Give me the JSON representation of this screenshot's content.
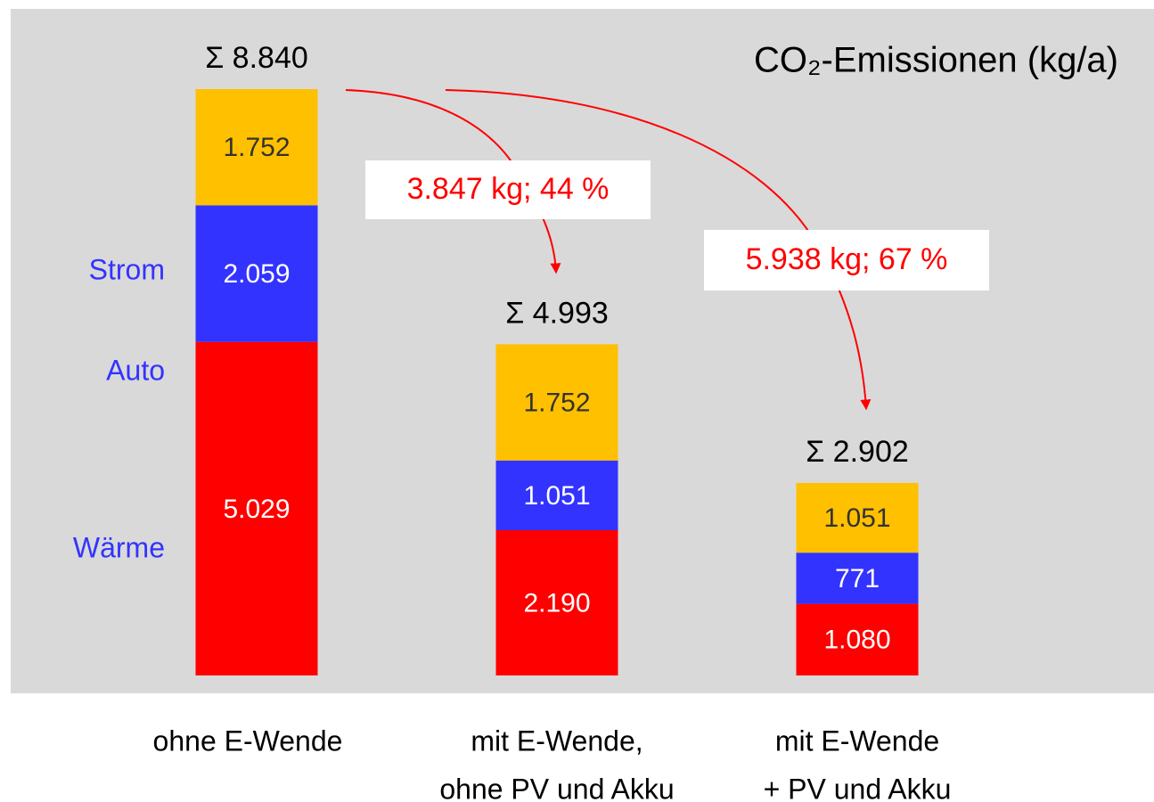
{
  "chart_data": {
    "type": "stacked_bar",
    "title": "CO₂-Emissionen (kg/a)",
    "categories": [
      [
        "ohne E-Wende"
      ],
      [
        "mit E-Wende,",
        "ohne PV und Akku"
      ],
      [
        "mit E-Wende",
        "+ PV und Akku"
      ]
    ],
    "series": [
      {
        "name": "Wärme",
        "color": "#ff0000",
        "values": [
          5029,
          2190,
          1080
        ],
        "value_labels": [
          "5.029",
          "2.190",
          "1.080"
        ]
      },
      {
        "name": "Auto",
        "color": "#3333ff",
        "values": [
          2059,
          1051,
          771
        ],
        "value_labels": [
          "2.059",
          "1.051",
          "771"
        ]
      },
      {
        "name": "Strom",
        "color": "#ffc000",
        "values": [
          1752,
          1752,
          1051
        ],
        "value_labels": [
          "1.752",
          "1.752",
          "1.051"
        ]
      }
    ],
    "totals": [
      8840,
      4993,
      2902
    ],
    "total_labels": [
      "Σ 8.840",
      "Σ 4.993",
      "Σ 2.902"
    ],
    "annotations": [
      "3.847 kg; 44 %",
      "5.938 kg; 67 %"
    ]
  }
}
